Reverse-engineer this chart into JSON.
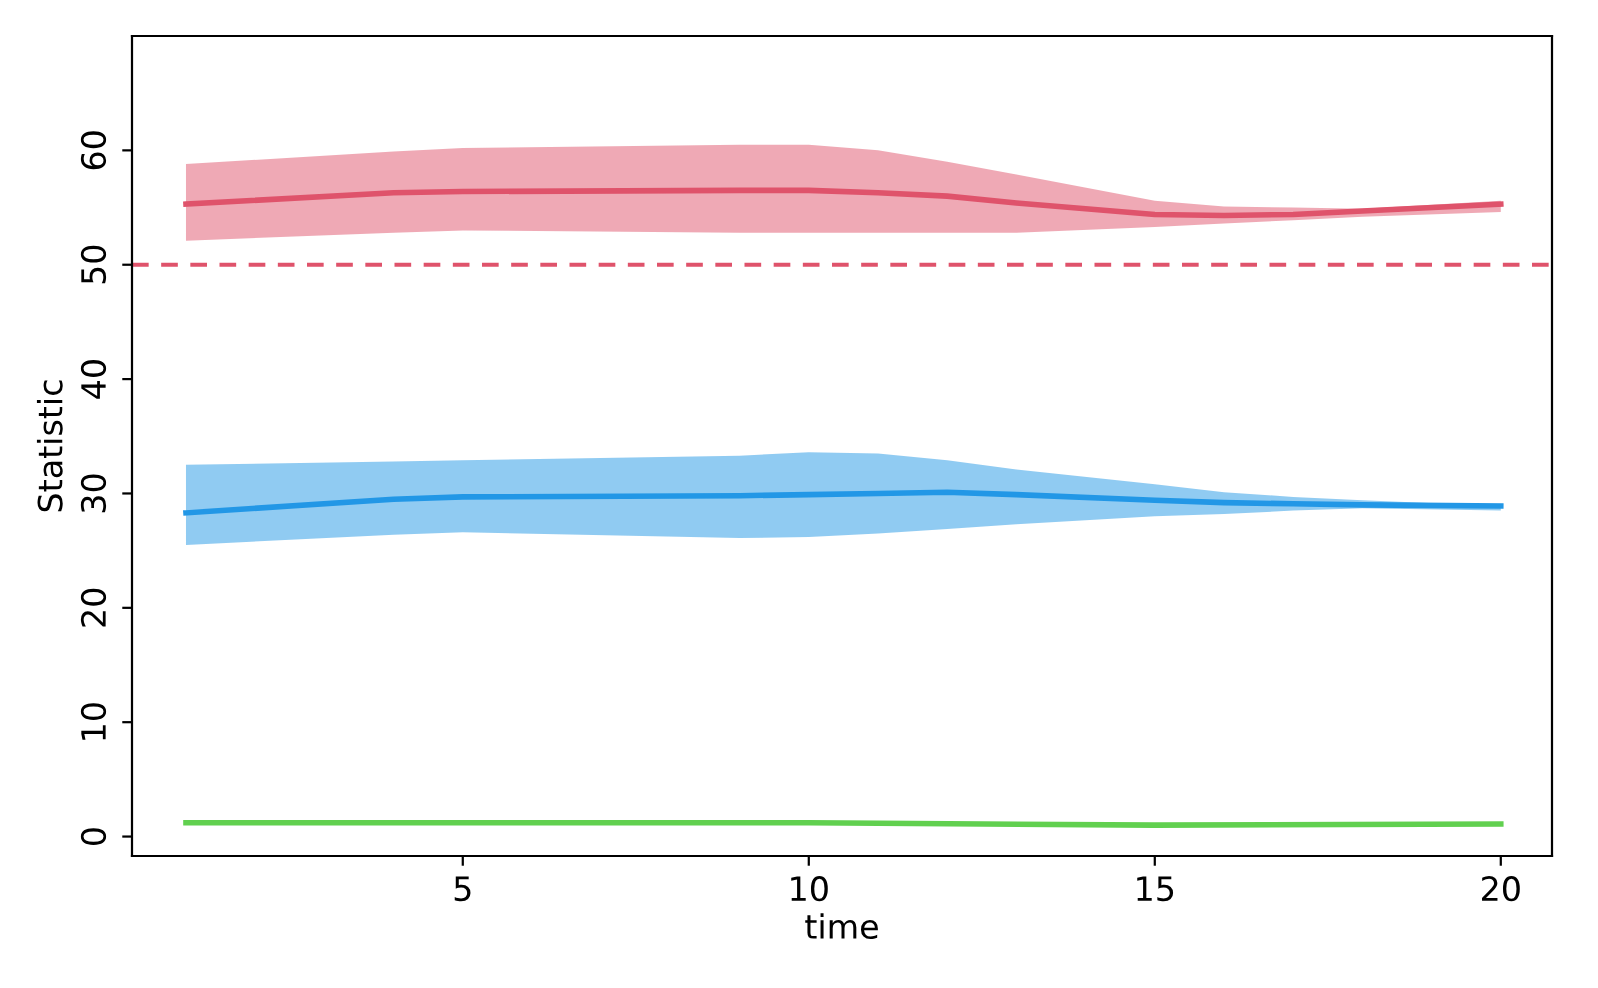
{
  "chart_data": {
    "type": "line",
    "xlabel": "time",
    "ylabel": "Statistic",
    "xlim": [
      0.22,
      20.74
    ],
    "ylim": [
      -1.7,
      70
    ],
    "xticks": [
      5,
      10,
      15,
      20
    ],
    "yticks": [
      0,
      10,
      20,
      30,
      40,
      50,
      60
    ],
    "grid": false,
    "legend": false,
    "line_style": "solid",
    "marker": "none",
    "series": [
      {
        "color": "#df536b",
        "x": [
          1,
          4,
          5,
          9,
          10,
          11,
          12,
          13,
          15,
          16,
          17,
          18,
          20
        ],
        "values": [
          55.3,
          56.3,
          56.4,
          56.5,
          56.5,
          56.3,
          56.0,
          55.4,
          54.4,
          54.3,
          54.4,
          54.7,
          55.3
        ],
        "upper": [
          58.8,
          59.9,
          60.2,
          60.5,
          60.5,
          60.0,
          59.0,
          57.9,
          55.6,
          55.1,
          55.0,
          54.9,
          55.6
        ],
        "lower": [
          52.1,
          52.8,
          53.0,
          52.8,
          52.8,
          52.8,
          52.8,
          52.8,
          53.3,
          53.6,
          53.9,
          54.2,
          54.6
        ]
      },
      {
        "color": "#2297e6",
        "x": [
          1,
          4,
          5,
          9,
          10,
          11,
          12,
          13,
          15,
          16,
          17,
          18,
          20
        ],
        "values": [
          28.3,
          29.5,
          29.7,
          29.8,
          29.9,
          30.0,
          30.1,
          29.9,
          29.4,
          29.2,
          29.1,
          29.0,
          28.9
        ],
        "upper": [
          32.5,
          32.8,
          32.9,
          33.3,
          33.6,
          33.5,
          32.9,
          32.1,
          30.8,
          30.1,
          29.7,
          29.4,
          28.9
        ],
        "lower": [
          25.5,
          26.4,
          26.6,
          26.1,
          26.2,
          26.5,
          26.9,
          27.3,
          28.0,
          28.2,
          28.5,
          28.7,
          28.5
        ]
      },
      {
        "color": "#61d04f",
        "x": [
          1,
          5,
          10,
          15,
          20
        ],
        "values": [
          1.2,
          1.2,
          1.2,
          1.0,
          1.1
        ]
      }
    ],
    "ref_lines": [
      {
        "axis": "y",
        "value": 50,
        "color": "#df536b",
        "line_style": "dashed"
      }
    ]
  }
}
